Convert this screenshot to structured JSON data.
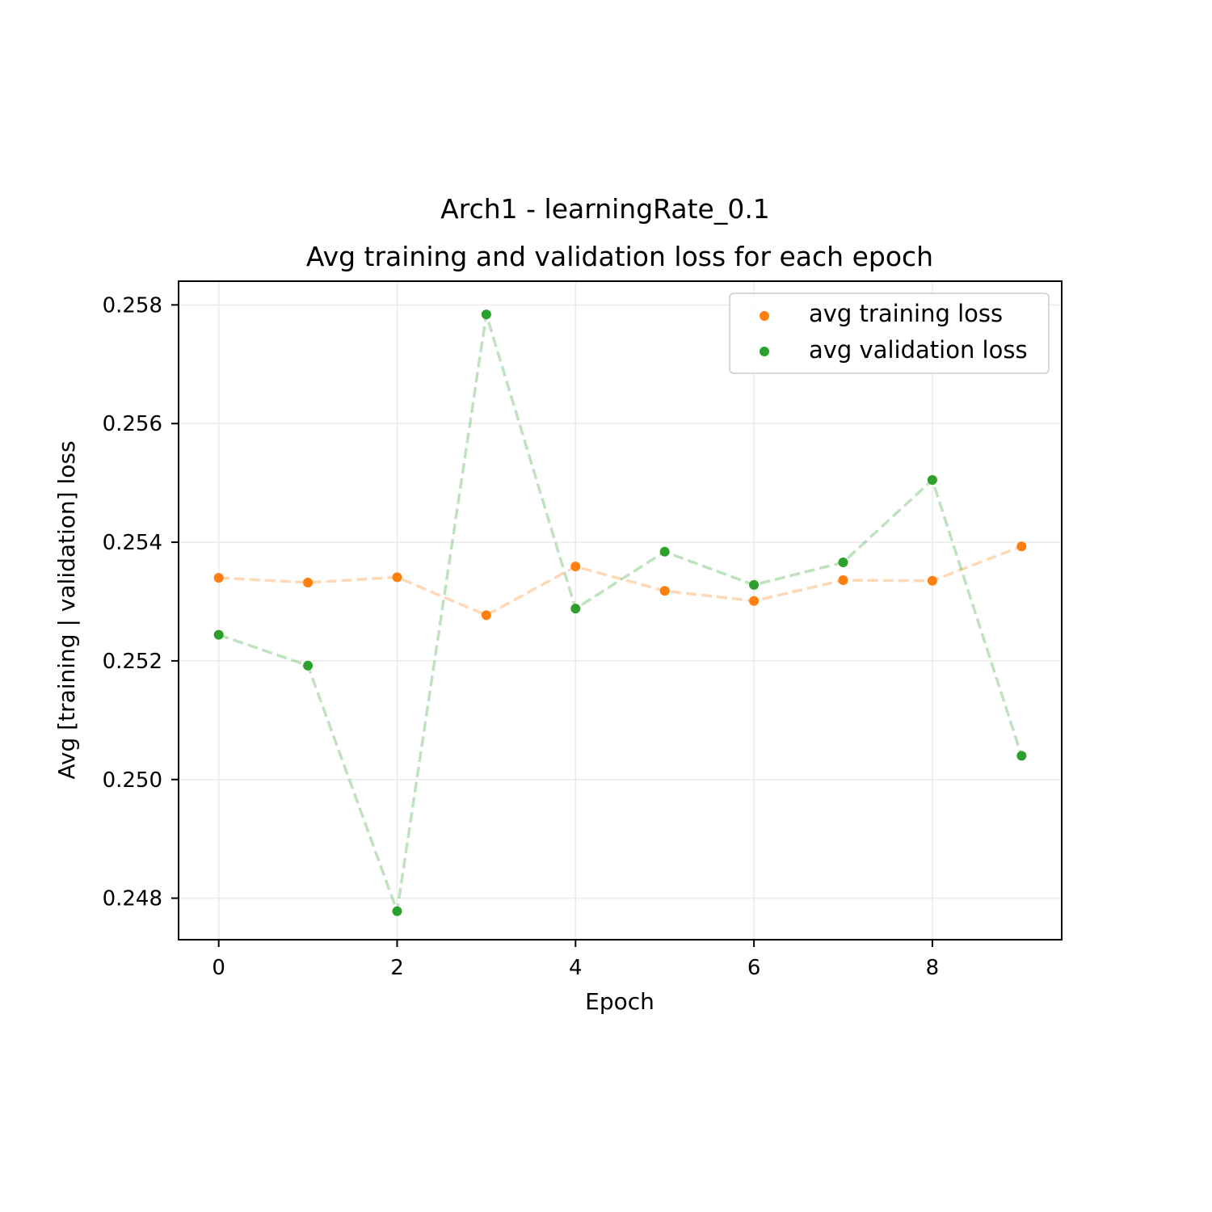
{
  "chart_data": {
    "type": "line",
    "title": "Arch1 - learningRate_0.1",
    "subtitle": "Avg training and validation loss for each epoch",
    "xlabel": "Epoch",
    "ylabel": "Avg [training | validation] loss",
    "x": [
      0,
      1,
      2,
      3,
      4,
      5,
      6,
      7,
      8,
      9
    ],
    "xlim": [
      -0.45,
      9.45
    ],
    "ylim": [
      0.2473,
      0.2584
    ],
    "xticks": [
      0,
      2,
      4,
      6,
      8
    ],
    "yticks": [
      0.248,
      0.25,
      0.252,
      0.254,
      0.256,
      0.258
    ],
    "xtick_labels": [
      "0",
      "2",
      "4",
      "6",
      "8"
    ],
    "ytick_labels": [
      "0.248",
      "0.250",
      "0.252",
      "0.254",
      "0.256",
      "0.258"
    ],
    "grid": true,
    "legend_position": "top-right",
    "series": [
      {
        "name": "avg training loss",
        "color": "#ff7f0e",
        "values": [
          0.2534,
          0.25332,
          0.25341,
          0.25277,
          0.25359,
          0.25318,
          0.25301,
          0.25336,
          0.25335,
          0.25393
        ]
      },
      {
        "name": "avg validation loss",
        "color": "#2ca02c",
        "values": [
          0.25244,
          0.25192,
          0.24778,
          0.25784,
          0.25288,
          0.25384,
          0.25328,
          0.25366,
          0.25505,
          0.2504
        ]
      }
    ]
  }
}
